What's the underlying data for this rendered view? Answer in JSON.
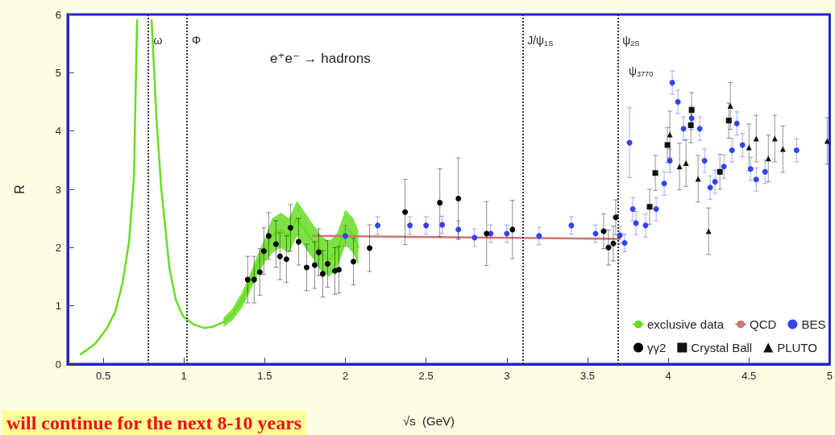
{
  "chart_data": {
    "type": "scatter",
    "xlabel": "√s  (GeV)",
    "ylabel": "R",
    "xlim": [
      0.28,
      5.0
    ],
    "ylim": [
      0,
      6
    ],
    "xticks": [
      0.5,
      1,
      1.5,
      2,
      2.5,
      3,
      3.5,
      4,
      4.5,
      5
    ],
    "yticks": [
      0,
      1,
      2,
      3,
      4,
      5,
      6
    ],
    "grid": false,
    "legend": "bottom right",
    "annotations": [
      "e⁺e⁻ → hadrons",
      "will continue for the next 8-10 years",
      "ψ$_{3770}$"
    ],
    "ref_lines": [
      {
        "axis": "x",
        "value": 0.782,
        "label": "ω",
        "color": "#333333",
        "line_style": "dotted"
      },
      {
        "axis": "x",
        "value": 1.019,
        "label": "Φ",
        "color": "#333333",
        "line_style": "dotted"
      },
      {
        "axis": "x",
        "value": 3.097,
        "label": "J/ψ$_{1S}$",
        "color": "#333333",
        "line_style": "dotted"
      },
      {
        "axis": "x",
        "value": 3.686,
        "label": "ψ$_{2S}$",
        "color": "#333333",
        "line_style": "dotted"
      }
    ],
    "series": [
      {
        "name": "exclusive data",
        "type": "line",
        "marker": "none",
        "color": "#66dd22",
        "x": [
          0.36,
          0.45,
          0.52,
          0.575,
          0.62,
          0.66,
          0.69,
          0.71,
          0.755,
          0.8,
          0.83,
          0.86,
          0.91,
          0.95,
          0.995,
          1.06,
          1.125,
          1.18,
          1.245,
          1.3,
          1.36,
          1.41,
          1.46,
          1.5,
          1.545,
          1.6,
          1.65,
          1.7,
          1.75,
          1.8,
          1.85,
          1.9,
          1.95,
          2.0,
          2.05,
          2.08
        ],
        "values": [
          0.17,
          0.35,
          0.6,
          0.9,
          1.4,
          2.1,
          3.2,
          5.9,
          null,
          5.9,
          4.2,
          3.0,
          1.65,
          1.1,
          0.82,
          0.68,
          0.62,
          0.64,
          0.72,
          0.85,
          1.1,
          1.4,
          1.73,
          1.95,
          2.2,
          2.3,
          2.2,
          2.5,
          2.3,
          2.1,
          1.9,
          1.8,
          1.95,
          2.35,
          2.2,
          2.0
        ],
        "lower": [
          null,
          null,
          null,
          null,
          null,
          null,
          null,
          null,
          null,
          null,
          null,
          null,
          null,
          null,
          null,
          null,
          null,
          null,
          0.64,
          0.75,
          0.97,
          1.25,
          1.55,
          1.75,
          1.9,
          2.0,
          1.9,
          2.2,
          2.0,
          1.8,
          1.6,
          1.5,
          1.65,
          2.05,
          1.9,
          1.7
        ],
        "upper": [
          null,
          null,
          null,
          null,
          null,
          null,
          null,
          null,
          null,
          null,
          null,
          null,
          null,
          null,
          null,
          null,
          null,
          null,
          0.8,
          0.95,
          1.23,
          1.55,
          1.9,
          2.15,
          2.5,
          2.6,
          2.5,
          2.8,
          2.6,
          2.4,
          2.2,
          2.1,
          2.25,
          2.65,
          2.5,
          2.3
        ]
      },
      {
        "name": "QCD",
        "type": "line",
        "marker": "none",
        "color": "#cc7777",
        "x": [
          1.8,
          3.7
        ],
        "values": [
          2.2,
          2.15
        ]
      },
      {
        "name": "BES",
        "marker": "circle",
        "color": "#3344ee",
        "x": [
          2.0,
          2.2,
          2.4,
          2.5,
          2.6,
          2.7,
          2.8,
          2.9,
          3.0,
          3.2,
          3.4,
          3.55,
          3.7,
          3.73,
          3.76,
          3.78,
          3.8,
          3.86,
          3.925,
          3.975,
          4.01,
          4.025,
          4.06,
          4.095,
          4.145,
          4.195,
          4.225,
          4.26,
          4.29,
          4.345,
          4.395,
          4.425,
          4.46,
          4.51,
          4.545,
          4.6,
          4.795
        ],
        "values": [
          2.2,
          2.38,
          2.38,
          2.38,
          2.39,
          2.31,
          2.17,
          2.24,
          2.24,
          2.2,
          2.38,
          2.24,
          2.21,
          2.08,
          3.8,
          2.66,
          2.42,
          2.38,
          2.66,
          3.1,
          3.49,
          4.83,
          4.5,
          4.04,
          4.22,
          4.04,
          3.49,
          3.03,
          3.13,
          3.39,
          3.67,
          4.13,
          3.76,
          3.35,
          3.17,
          3.3,
          3.67
        ],
        "errors": [
          0.18,
          0.15,
          0.15,
          0.15,
          0.15,
          0.15,
          0.15,
          0.15,
          0.15,
          0.15,
          0.15,
          0.15,
          0.15,
          0.15,
          0.6,
          0.2,
          0.2,
          0.2,
          0.2,
          0.2,
          0.2,
          0.2,
          0.2,
          0.2,
          0.2,
          0.2,
          0.2,
          0.2,
          0.2,
          0.2,
          0.2,
          0.2,
          0.2,
          0.2,
          0.2,
          0.2,
          0.2
        ]
      },
      {
        "name": "γγ2",
        "marker": "circle",
        "color": "#000000",
        "x": [
          1.395,
          1.435,
          1.47,
          1.495,
          1.525,
          1.57,
          1.595,
          1.635,
          1.66,
          1.71,
          1.76,
          1.81,
          1.835,
          1.86,
          1.89,
          1.935,
          1.96,
          2.05,
          2.15,
          2.37,
          2.585,
          2.7,
          2.875,
          3.035,
          3.6,
          3.63,
          3.66,
          3.675
        ],
        "values": [
          1.45,
          1.45,
          1.58,
          1.94,
          2.2,
          2.06,
          1.85,
          1.8,
          2.34,
          2.1,
          1.66,
          1.7,
          1.92,
          1.55,
          1.72,
          1.6,
          1.62,
          1.76,
          1.99,
          2.61,
          2.77,
          2.84,
          2.24,
          2.31,
          2.28,
          2.0,
          2.07,
          2.52
        ],
        "errors": [
          0.4,
          0.4,
          0.4,
          0.4,
          0.4,
          0.4,
          0.4,
          0.4,
          0.4,
          0.4,
          0.4,
          0.4,
          0.4,
          0.4,
          0.4,
          0.4,
          0.4,
          0.4,
          0.4,
          0.56,
          0.58,
          0.7,
          0.55,
          0.5,
          0.3,
          0.3,
          0.3,
          0.3
        ]
      },
      {
        "name": "Crystal Ball",
        "marker": "square",
        "color": "#111111",
        "x": [
          3.885,
          3.92,
          3.995,
          4.14,
          4.145,
          4.32,
          4.375
        ],
        "values": [
          2.7,
          3.28,
          3.76,
          4.1,
          4.36,
          3.3,
          4.18
        ],
        "errors": [
          0.3,
          0.3,
          0.3,
          0.3,
          0.3,
          0.3,
          0.3
        ]
      },
      {
        "name": "PLUTO",
        "marker": "triangle",
        "color": "#111111",
        "x": [
          4.01,
          4.07,
          4.11,
          4.185,
          4.25,
          4.385,
          4.5,
          4.545,
          4.62,
          4.66,
          4.71,
          4.985
        ],
        "values": [
          3.94,
          3.39,
          3.45,
          3.18,
          2.28,
          4.43,
          3.72,
          3.87,
          3.53,
          3.87,
          3.69,
          3.83
        ],
        "errors": [
          0.4,
          0.4,
          0.4,
          0.4,
          0.4,
          0.4,
          0.4,
          0.4,
          0.4,
          0.4,
          0.4,
          0.4
        ]
      }
    ]
  }
}
